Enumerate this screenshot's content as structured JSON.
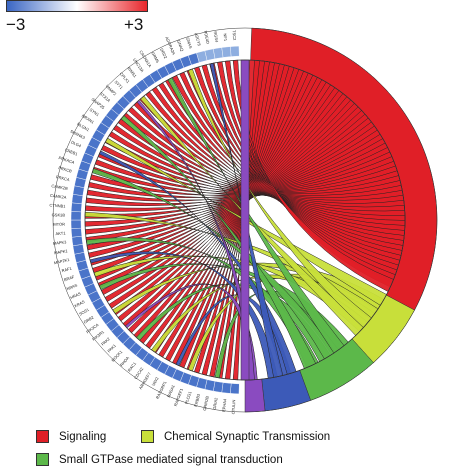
{
  "scale": {
    "min_label": "−3",
    "max_label": "+3",
    "colors": [
      "#3a66c4",
      "#ffffff",
      "#e8262b"
    ]
  },
  "legend": [
    {
      "label": "Signaling",
      "color": "#e01f27"
    },
    {
      "label": "Chemical Synaptic Transmission",
      "color": "#c8df3a"
    },
    {
      "label": "Small GTPase mediated signal transduction",
      "color": "#5cb84a"
    }
  ],
  "colors": {
    "signaling": "#e01f27",
    "synaptic": "#c8df3a",
    "gtpase": "#5cb84a",
    "gene_ring": "#4a74c9",
    "gene_ring_light": "#8eaee0",
    "ribbon_blue": "#3c5ab8",
    "ribbon_purple": "#8a4bc0"
  },
  "diagram": {
    "genes": [
      "OTULIN",
      "EPHA4",
      "GRIA2",
      "GRIN2B",
      "ERBB3",
      "PLCG1",
      "RAPGEF1",
      "RASA1",
      "RASGRP1",
      "VAV2",
      "ARHGEF7",
      "CDC42",
      "RAC1",
      "RHOA",
      "ROCK1",
      "PAK1",
      "PAK2",
      "PIK3R1",
      "PIK3CA",
      "GRB2",
      "SOS1",
      "KRAS",
      "HRAS",
      "NRAS",
      "BRAF",
      "RAF1",
      "MAP2K1",
      "MAPK1",
      "MAPK3",
      "AKT1",
      "MTOR",
      "GSK3B",
      "CTNNB1",
      "CAMK2A",
      "CAMK2B",
      "PRKCA",
      "PRKCB",
      "PRKACA",
      "CREB1",
      "DLG4",
      "SHANK3",
      "NLGN1",
      "NRXN1",
      "SYN1",
      "SNAP25",
      "STX1A",
      "VAMP2",
      "SYT1",
      "CPLX1",
      "RIMS1",
      "UNC13A",
      "CACNA1A",
      "GRM5",
      "DRD2",
      "ADORA2A",
      "GNAQ",
      "GNAS",
      "ADCY5",
      "PDE4D",
      "RGS4",
      "NF1",
      "TSC2"
    ]
  }
}
